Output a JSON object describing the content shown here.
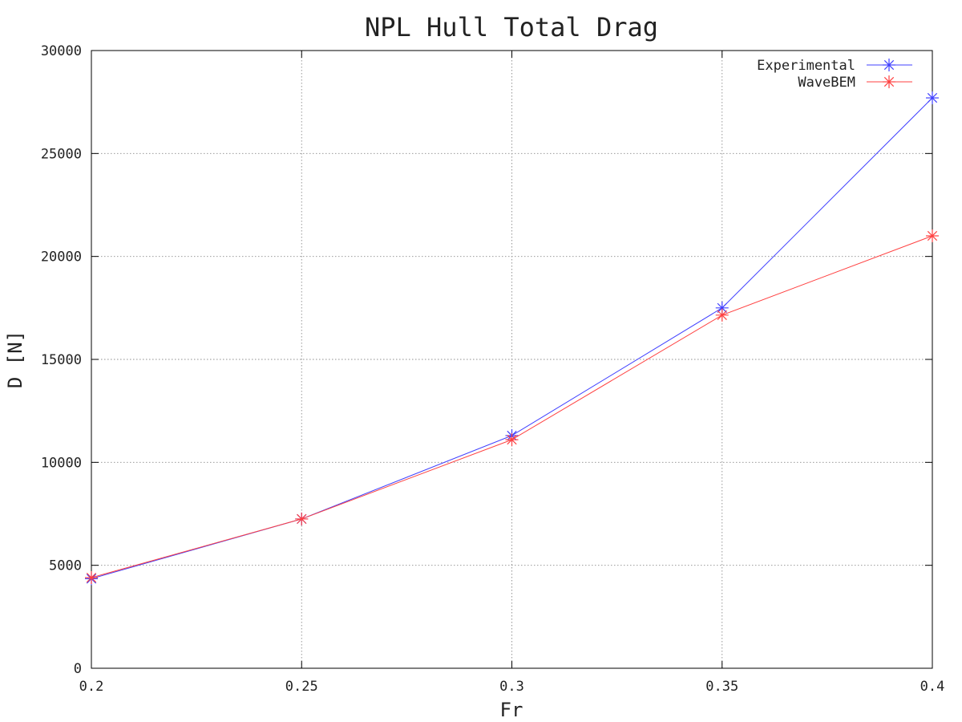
{
  "chart_data": {
    "type": "line",
    "title": "NPL Hull Total Drag",
    "xlabel": "Fr",
    "ylabel": "D [N]",
    "xlim": [
      0.2,
      0.4
    ],
    "ylim": [
      0,
      30000
    ],
    "x_ticks": [
      "0.2",
      "0.25",
      "0.3",
      "0.35",
      "0.4"
    ],
    "y_ticks": [
      "0",
      "5000",
      "10000",
      "15000",
      "20000",
      "25000",
      "30000"
    ],
    "grid": true,
    "legend_position": "top-right",
    "marker": "asterisk",
    "series": [
      {
        "name": "Experimental",
        "color": "#4040ff",
        "x": [
          0.2,
          0.25,
          0.3,
          0.35,
          0.4
        ],
        "y": [
          4350,
          7250,
          11300,
          17500,
          27700
        ]
      },
      {
        "name": "WaveBEM",
        "color": "#ff4040",
        "x": [
          0.2,
          0.25,
          0.3,
          0.35,
          0.4
        ],
        "y": [
          4400,
          7250,
          11100,
          17150,
          21000
        ]
      }
    ]
  }
}
